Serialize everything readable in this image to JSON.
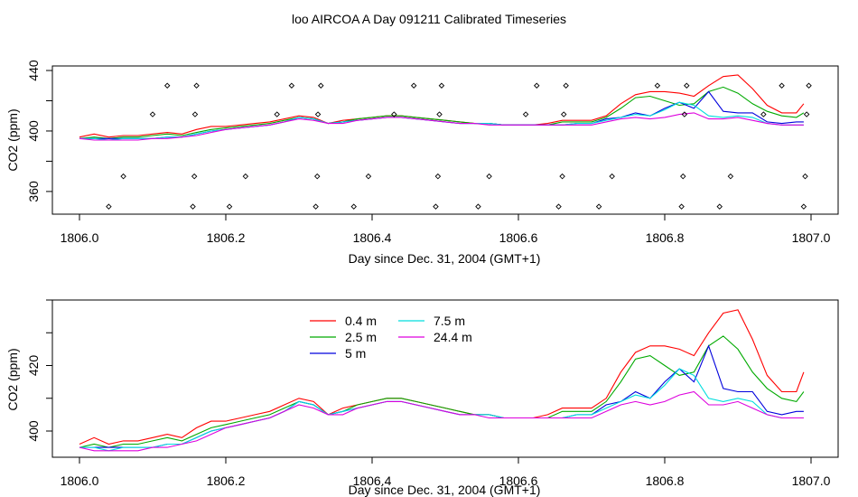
{
  "title": "loo AIRCOA A  Day 091211  Calibrated Timeseries",
  "chart_data": [
    {
      "type": "line",
      "xlabel": "Day since Dec. 31, 2004 (GMT+1)",
      "ylabel": "CO2 (ppm)",
      "xlim": [
        1806.0,
        1807.0
      ],
      "ylim": [
        345,
        443
      ],
      "xticks": [
        "1806.0",
        "1806.2",
        "1806.4",
        "1806.6",
        "1806.8",
        "1807.0"
      ],
      "yticks": [
        "360",
        "400",
        "440"
      ],
      "series": [
        {
          "name": "0.4 m",
          "color": "#ff0000",
          "x": [
            1806.0,
            1806.02,
            1806.04,
            1806.06,
            1806.08,
            1806.1,
            1806.12,
            1806.14,
            1806.16,
            1806.18,
            1806.2,
            1806.22,
            1806.24,
            1806.26,
            1806.28,
            1806.3,
            1806.32,
            1806.34,
            1806.36,
            1806.38,
            1806.4,
            1806.42,
            1806.44,
            1806.46,
            1806.48,
            1806.5,
            1806.52,
            1806.54,
            1806.56,
            1806.58,
            1806.6,
            1806.62,
            1806.64,
            1806.66,
            1806.68,
            1806.7,
            1806.72,
            1806.74,
            1806.76,
            1806.78,
            1806.8,
            1806.82,
            1806.84,
            1806.86,
            1806.88,
            1806.9,
            1806.92,
            1806.94,
            1806.96,
            1806.98,
            1806.99
          ],
          "values": [
            396,
            398,
            396,
            397,
            397,
            398,
            399,
            398,
            401,
            403,
            403,
            404,
            405,
            406,
            408,
            410,
            409,
            405,
            407,
            408,
            409,
            410,
            410,
            409,
            408,
            407,
            406,
            405,
            405,
            404,
            404,
            404,
            405,
            407,
            407,
            407,
            410,
            418,
            424,
            426,
            426,
            425,
            423,
            430,
            436,
            437,
            428,
            417,
            412,
            412,
            418
          ]
        },
        {
          "name": "2.5 m",
          "color": "#00aa00",
          "x": [
            1806.0,
            1806.02,
            1806.04,
            1806.06,
            1806.08,
            1806.1,
            1806.12,
            1806.14,
            1806.16,
            1806.18,
            1806.2,
            1806.22,
            1806.24,
            1806.26,
            1806.28,
            1806.3,
            1806.32,
            1806.34,
            1806.36,
            1806.38,
            1806.4,
            1806.42,
            1806.44,
            1806.46,
            1806.48,
            1806.5,
            1806.52,
            1806.54,
            1806.56,
            1806.58,
            1806.6,
            1806.62,
            1806.64,
            1806.66,
            1806.68,
            1806.7,
            1806.72,
            1806.74,
            1806.76,
            1806.78,
            1806.8,
            1806.82,
            1806.84,
            1806.86,
            1806.88,
            1806.9,
            1806.92,
            1806.94,
            1806.96,
            1806.98,
            1806.99
          ],
          "values": [
            395,
            396,
            395,
            396,
            396,
            397,
            398,
            397,
            399,
            401,
            402,
            403,
            404,
            405,
            407,
            409,
            408,
            405,
            406,
            408,
            409,
            410,
            410,
            409,
            408,
            407,
            406,
            405,
            405,
            404,
            404,
            404,
            404,
            406,
            406,
            406,
            409,
            415,
            422,
            423,
            420,
            417,
            418,
            426,
            429,
            425,
            418,
            413,
            410,
            409,
            412
          ]
        },
        {
          "name": "5 m",
          "color": "#0000dd",
          "x": [
            1806.0,
            1806.02,
            1806.04,
            1806.06,
            1806.08,
            1806.1,
            1806.12,
            1806.14,
            1806.16,
            1806.18,
            1806.2,
            1806.22,
            1806.24,
            1806.26,
            1806.28,
            1806.3,
            1806.32,
            1806.34,
            1806.36,
            1806.38,
            1806.4,
            1806.42,
            1806.44,
            1806.46,
            1806.48,
            1806.5,
            1806.52,
            1806.54,
            1806.56,
            1806.58,
            1806.6,
            1806.62,
            1806.64,
            1806.66,
            1806.68,
            1806.7,
            1806.72,
            1806.74,
            1806.76,
            1806.78,
            1806.8,
            1806.82,
            1806.84,
            1806.86,
            1806.88,
            1806.9,
            1806.92,
            1806.94,
            1806.96,
            1806.98,
            1806.99
          ],
          "values": [
            395,
            395,
            395,
            395,
            395,
            395,
            396,
            396,
            398,
            400,
            401,
            402,
            403,
            404,
            406,
            409,
            408,
            405,
            406,
            407,
            408,
            409,
            409,
            408,
            407,
            406,
            405,
            405,
            405,
            404,
            404,
            404,
            404,
            404,
            405,
            405,
            408,
            409,
            412,
            410,
            415,
            419,
            415,
            426,
            413,
            412,
            412,
            406,
            405,
            406,
            406
          ]
        },
        {
          "name": "7.5 m",
          "color": "#00dddd",
          "x": [
            1806.0,
            1806.02,
            1806.04,
            1806.06,
            1806.08,
            1806.1,
            1806.12,
            1806.14,
            1806.16,
            1806.18,
            1806.2,
            1806.22,
            1806.24,
            1806.26,
            1806.28,
            1806.3,
            1806.32,
            1806.34,
            1806.36,
            1806.38,
            1806.4,
            1806.42,
            1806.44,
            1806.46,
            1806.48,
            1806.5,
            1806.52,
            1806.54,
            1806.56,
            1806.58,
            1806.6,
            1806.62,
            1806.64,
            1806.66,
            1806.68,
            1806.7,
            1806.72,
            1806.74,
            1806.76,
            1806.78,
            1806.8,
            1806.82,
            1806.84,
            1806.86,
            1806.88,
            1806.9,
            1806.92,
            1806.94,
            1806.96,
            1806.98,
            1806.99
          ],
          "values": [
            395,
            395,
            394,
            395,
            395,
            395,
            396,
            396,
            398,
            400,
            401,
            402,
            403,
            404,
            406,
            409,
            408,
            405,
            406,
            407,
            408,
            409,
            409,
            408,
            407,
            406,
            405,
            405,
            405,
            404,
            404,
            404,
            404,
            404,
            405,
            405,
            407,
            409,
            411,
            410,
            414,
            419,
            417,
            410,
            409,
            410,
            409,
            405,
            404,
            404,
            404
          ]
        },
        {
          "name": "24.4 m",
          "color": "#dd00dd",
          "x": [
            1806.0,
            1806.02,
            1806.04,
            1806.06,
            1806.08,
            1806.1,
            1806.12,
            1806.14,
            1806.16,
            1806.18,
            1806.2,
            1806.22,
            1806.24,
            1806.26,
            1806.28,
            1806.3,
            1806.32,
            1806.34,
            1806.36,
            1806.38,
            1806.4,
            1806.42,
            1806.44,
            1806.46,
            1806.48,
            1806.5,
            1806.52,
            1806.54,
            1806.56,
            1806.58,
            1806.6,
            1806.62,
            1806.64,
            1806.66,
            1806.68,
            1806.7,
            1806.72,
            1806.74,
            1806.76,
            1806.78,
            1806.8,
            1806.82,
            1806.84,
            1806.86,
            1806.88,
            1806.9,
            1806.92,
            1806.94,
            1806.96,
            1806.98,
            1806.99
          ],
          "values": [
            395,
            394,
            394,
            394,
            394,
            395,
            395,
            396,
            397,
            399,
            401,
            402,
            403,
            404,
            406,
            408,
            407,
            405,
            405,
            407,
            408,
            409,
            409,
            408,
            407,
            406,
            405,
            405,
            404,
            404,
            404,
            404,
            404,
            404,
            404,
            404,
            406,
            408,
            409,
            408,
            409,
            411,
            412,
            408,
            408,
            409,
            407,
            405,
            404,
            404,
            404
          ]
        }
      ],
      "points": {
        "type": "scatter",
        "x": [
          1806.04,
          1806.06,
          1806.1,
          1806.12,
          1806.155,
          1806.157,
          1806.158,
          1806.16,
          1806.205,
          1806.227,
          1806.27,
          1806.29,
          1806.323,
          1806.325,
          1806.326,
          1806.33,
          1806.375,
          1806.395,
          1806.43,
          1806.457,
          1806.487,
          1806.49,
          1806.492,
          1806.495,
          1806.545,
          1806.56,
          1806.61,
          1806.625,
          1806.655,
          1806.66,
          1806.662,
          1806.665,
          1806.71,
          1806.728,
          1806.79,
          1806.823,
          1806.825,
          1806.827,
          1806.83,
          1806.875,
          1806.89,
          1806.935,
          1806.96,
          1806.99,
          1806.992,
          1806.994,
          1806.997
        ],
        "y": [
          350,
          370,
          411,
          430,
          350,
          370,
          411,
          430,
          350,
          370,
          411,
          430,
          350,
          370,
          411,
          430,
          350,
          370,
          411,
          430,
          350,
          370,
          411,
          430,
          350,
          370,
          411,
          430,
          350,
          370,
          411,
          430,
          350,
          370,
          430,
          350,
          370,
          411,
          430,
          350,
          370,
          411,
          430,
          350,
          370,
          411,
          430
        ]
      }
    },
    {
      "type": "line",
      "xlabel": "Day since Dec. 31, 2004 (GMT+1)",
      "ylabel": "CO2 (ppm)",
      "xlim": [
        1806.0,
        1807.0
      ],
      "ylim": [
        392,
        440
      ],
      "xticks": [
        "1806.0",
        "1806.2",
        "1806.4",
        "1806.6",
        "1806.8",
        "1807.0"
      ],
      "yticks": [
        "400",
        "420"
      ],
      "legend_position": "top-left",
      "series_ref": "same as above"
    }
  ]
}
